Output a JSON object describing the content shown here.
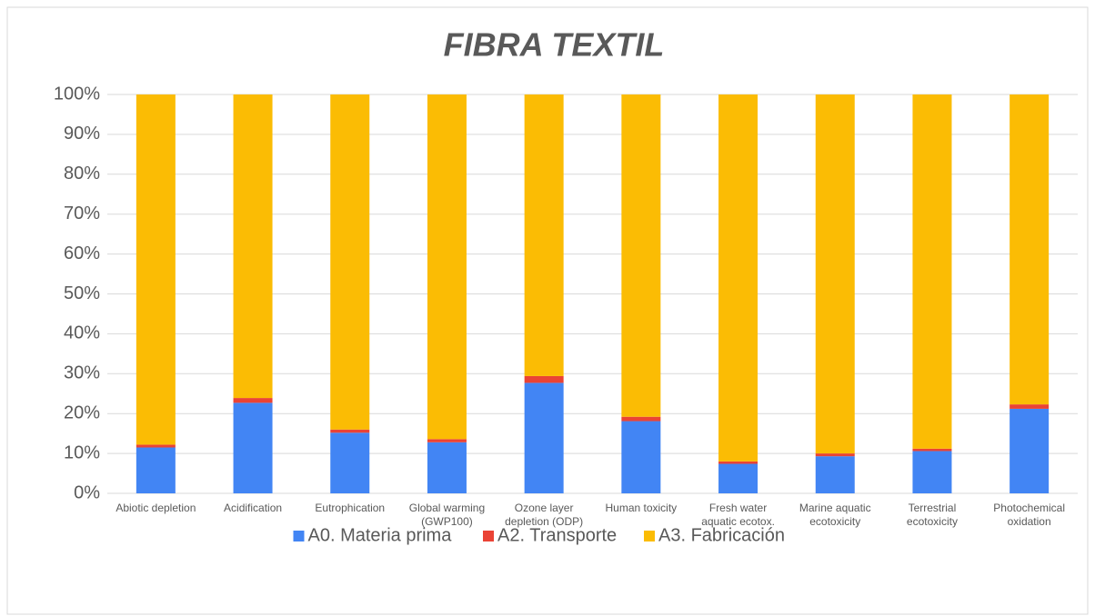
{
  "chart_data": {
    "type": "stacked_bar",
    "title": "FIBRA TEXTIL",
    "categories": [
      "Abiotic depletion",
      "Acidification",
      "Eutrophication",
      "Global warming (GWP100)",
      "Ozone layer depletion (ODP)",
      "Human toxicity",
      "Fresh water aquatic ecotox.",
      "Marine aquatic ecotoxicity",
      "Terrestrial ecotoxicity",
      "Photochemical oxidation"
    ],
    "series": [
      {
        "name": "A0. Materia prima",
        "color": "#4285f4",
        "values": [
          11.5,
          22.7,
          15.2,
          12.8,
          27.7,
          18.1,
          7.4,
          9.3,
          10.6,
          21.2
        ]
      },
      {
        "name": "A2. Transporte",
        "color": "#ea4335",
        "values": [
          0.7,
          1.2,
          0.8,
          0.8,
          1.7,
          1.1,
          0.6,
          0.7,
          0.6,
          1.1
        ]
      },
      {
        "name": "A3. Fabricación",
        "color": "#fbbc04",
        "values": [
          87.8,
          76.1,
          84.0,
          86.4,
          70.6,
          80.8,
          92.0,
          90.0,
          88.8,
          77.7
        ]
      }
    ],
    "ylim": [
      0,
      100
    ],
    "yticks": [
      {
        "value": 0,
        "label": "0%"
      },
      {
        "value": 10,
        "label": "10%"
      },
      {
        "value": 20,
        "label": "20%"
      },
      {
        "value": 30,
        "label": "30%"
      },
      {
        "value": 40,
        "label": "40%"
      },
      {
        "value": 50,
        "label": "50%"
      },
      {
        "value": 60,
        "label": "60%"
      },
      {
        "value": 70,
        "label": "70%"
      },
      {
        "value": 80,
        "label": "80%"
      },
      {
        "value": 90,
        "label": "90%"
      },
      {
        "value": 100,
        "label": "100%"
      }
    ],
    "grid": true,
    "legend": "bottom"
  }
}
